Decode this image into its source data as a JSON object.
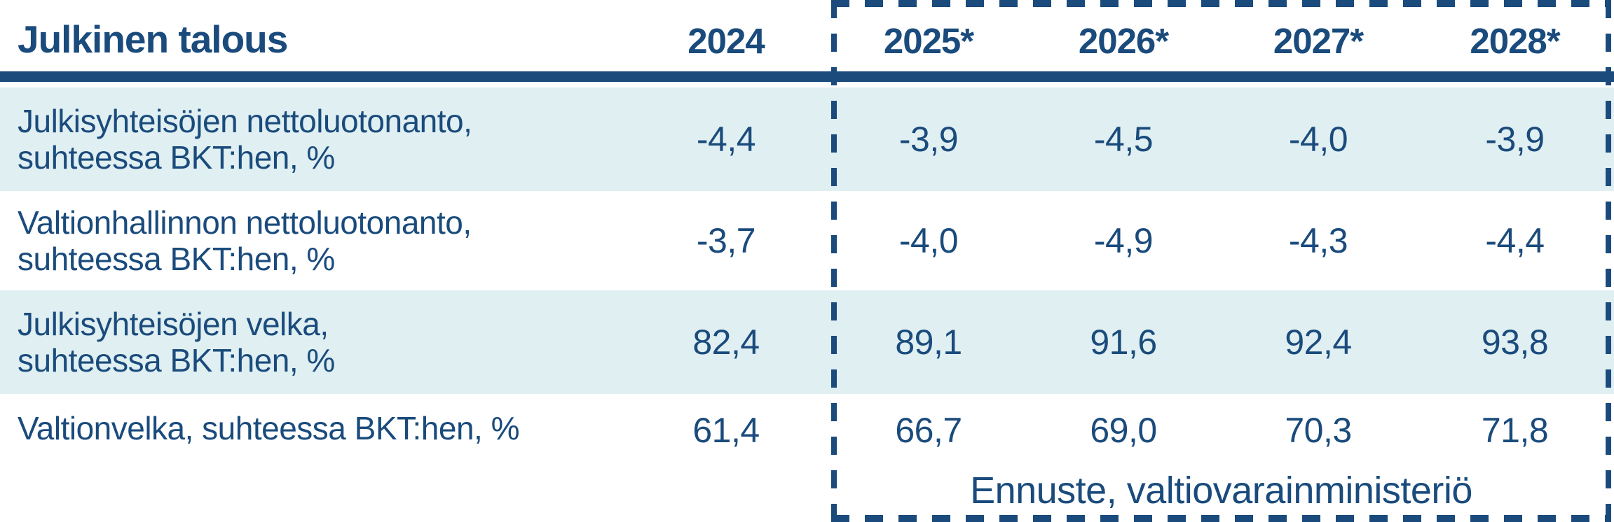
{
  "colors": {
    "navy": "#1A4B7C",
    "row_highlight": "#E0EFF2",
    "background": "#FFFFFF"
  },
  "chart_data": {
    "type": "table",
    "title": "Julkinen talous",
    "columns": [
      "2024",
      "2025*",
      "2026*",
      "2027*",
      "2028*"
    ],
    "rows": [
      {
        "label_line1": "Julkisyhteisöjen nettoluotonanto,",
        "label_line2": "suhteessa BKT:hen, %",
        "values": [
          "-4,4",
          "-3,9",
          "-4,5",
          "-4,0",
          "-3,9"
        ]
      },
      {
        "label_line1": "Valtionhallinnon nettoluotonanto,",
        "label_line2": "suhteessa BKT:hen, %",
        "values": [
          "-3,7",
          "-4,0",
          "-4,9",
          "-4,3",
          "-4,4"
        ]
      },
      {
        "label_line1": "Julkisyhteisöjen velka,",
        "label_line2": "suhteessa BKT:hen, %",
        "values": [
          "82,4",
          "89,1",
          "91,6",
          "92,4",
          "93,8"
        ]
      },
      {
        "label_line1": "Valtionvelka, suhteessa BKT:hen, %",
        "label_line2": "",
        "values": [
          "61,4",
          "66,7",
          "69,0",
          "70,3",
          "71,8"
        ]
      }
    ],
    "forecast_note": "Ennuste, valtiovarainministeriö",
    "notes": "Columns 2025*-2028* are forecast values enclosed in a dashed box; * marks forecast years; alternating rows highlighted in light cyan"
  }
}
